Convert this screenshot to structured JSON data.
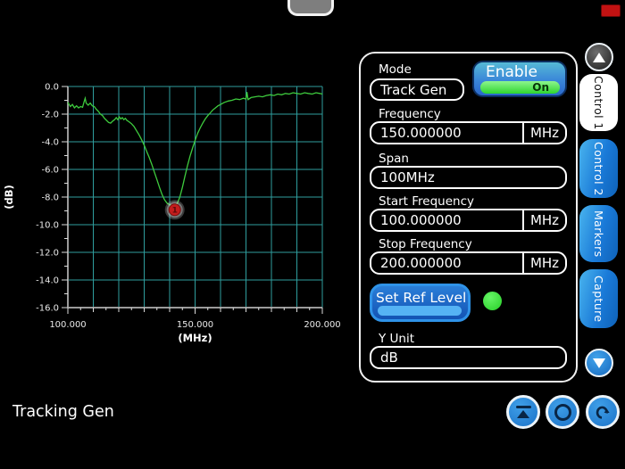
{
  "top": {
    "handle": "menu-pull-handle",
    "indicator": "red-indicator"
  },
  "status_text": "Tracking Gen",
  "panel": {
    "mode_label": "Mode",
    "mode_value": "Track Gen",
    "enable_label": "Enable",
    "enable_state": "On",
    "frequency_label": "Frequency",
    "frequency_value": "150.000000",
    "frequency_unit": "MHz",
    "span_label": "Span",
    "span_value": "100MHz",
    "start_label": "Start Frequency",
    "start_value": "100.000000",
    "start_unit": "MHz",
    "stop_label": "Stop Frequency",
    "stop_value": "200.000000",
    "stop_unit": "MHz",
    "set_ref_label": "Set Ref Level",
    "y_unit_label": "Y Unit",
    "y_unit_value": "dB"
  },
  "tabs": [
    {
      "label": "Control 1",
      "active": true
    },
    {
      "label": "Control 2",
      "active": false
    },
    {
      "label": "Markers",
      "active": false
    },
    {
      "label": "Capture",
      "active": false
    }
  ],
  "colors": {
    "grid": "#2f9e9e",
    "axis": "#9a9a9a",
    "trace": "#3ecb3e",
    "tick_text": "#e9e9e9",
    "marker_fill": "#c41d1d",
    "marker_stroke": "#7e0d0d",
    "tab_blue": "#1a7ad8",
    "led_green": "#35e635"
  },
  "chart_data": {
    "type": "line",
    "title": "",
    "xlabel": "(MHz)",
    "ylabel": "(dB)",
    "xlim": [
      100,
      200
    ],
    "ylim": [
      -16,
      0
    ],
    "x_grid_step": 10,
    "y_grid_step": 2,
    "grid": true,
    "legend": false,
    "x_tick_values": [
      100,
      150,
      200
    ],
    "x_tick_labels": [
      "100.000",
      "150.000",
      "200.000"
    ],
    "y_tick_values": [
      0,
      -2,
      -4,
      -6,
      -8,
      -10,
      -12,
      -14,
      -16
    ],
    "y_tick_labels": [
      "0.0",
      "-2.0",
      "-4.0",
      "-6.0",
      "-8.0",
      "-10.0",
      "-12.0",
      "-14.0",
      "-16.0"
    ],
    "marker": {
      "id": "1",
      "freq_mhz": 142,
      "level_db": -8.6
    },
    "series": [
      {
        "name": "trace",
        "points": [
          [
            100,
            -1.15
          ],
          [
            101,
            -1.45
          ],
          [
            101.8,
            -1.3
          ],
          [
            102.6,
            -1.55
          ],
          [
            103.4,
            -1.4
          ],
          [
            104.2,
            -1.55
          ],
          [
            105,
            -1.45
          ],
          [
            105.8,
            -1.5
          ],
          [
            106.4,
            -1.1
          ],
          [
            106.8,
            -0.85
          ],
          [
            107.2,
            -1.2
          ],
          [
            108,
            -1.35
          ],
          [
            108.8,
            -1.2
          ],
          [
            109.6,
            -1.4
          ],
          [
            110.4,
            -1.45
          ],
          [
            111.2,
            -1.65
          ],
          [
            112,
            -1.8
          ],
          [
            112.8,
            -2.0
          ],
          [
            113.6,
            -2.1
          ],
          [
            114.4,
            -2.3
          ],
          [
            115.2,
            -2.45
          ],
          [
            116,
            -2.6
          ],
          [
            116.8,
            -2.65
          ],
          [
            117.6,
            -2.5
          ],
          [
            118.4,
            -2.4
          ],
          [
            119,
            -2.25
          ],
          [
            119.6,
            -2.4
          ],
          [
            120.2,
            -2.2
          ],
          [
            120.8,
            -2.35
          ],
          [
            121.4,
            -2.25
          ],
          [
            122,
            -2.4
          ],
          [
            122.6,
            -2.3
          ],
          [
            123.2,
            -2.45
          ],
          [
            124,
            -2.55
          ],
          [
            125,
            -2.7
          ],
          [
            126,
            -2.9
          ],
          [
            127,
            -3.2
          ],
          [
            128,
            -3.5
          ],
          [
            129,
            -3.85
          ],
          [
            130,
            -4.25
          ],
          [
            131,
            -4.7
          ],
          [
            132,
            -5.15
          ],
          [
            133,
            -5.65
          ],
          [
            134,
            -6.2
          ],
          [
            135,
            -6.75
          ],
          [
            136,
            -7.3
          ],
          [
            137,
            -7.8
          ],
          [
            138,
            -8.2
          ],
          [
            139,
            -8.45
          ],
          [
            140,
            -8.55
          ],
          [
            141,
            -8.6
          ],
          [
            142,
            -8.62
          ],
          [
            143,
            -8.45
          ],
          [
            144,
            -8.0
          ],
          [
            145,
            -7.3
          ],
          [
            146,
            -6.5
          ],
          [
            147,
            -5.75
          ],
          [
            148,
            -5.05
          ],
          [
            149,
            -4.45
          ],
          [
            150,
            -3.9
          ],
          [
            151,
            -3.4
          ],
          [
            152,
            -3.0
          ],
          [
            153,
            -2.65
          ],
          [
            154,
            -2.35
          ],
          [
            155,
            -2.1
          ],
          [
            156,
            -1.9
          ],
          [
            157,
            -1.7
          ],
          [
            158,
            -1.55
          ],
          [
            159,
            -1.4
          ],
          [
            160,
            -1.3
          ],
          [
            161.5,
            -1.15
          ],
          [
            163,
            -1.05
          ],
          [
            164.5,
            -1.0
          ],
          [
            166,
            -0.9
          ],
          [
            167.5,
            -0.95
          ],
          [
            169,
            -0.85
          ],
          [
            170,
            -0.9
          ],
          [
            170.4,
            -0.4
          ],
          [
            170.8,
            -0.95
          ],
          [
            172,
            -0.8
          ],
          [
            173.5,
            -0.75
          ],
          [
            175,
            -0.7
          ],
          [
            176.5,
            -0.75
          ],
          [
            178,
            -0.65
          ],
          [
            179.5,
            -0.6
          ],
          [
            181,
            -0.65
          ],
          [
            182.5,
            -0.55
          ],
          [
            184,
            -0.6
          ],
          [
            185.5,
            -0.5
          ],
          [
            187,
            -0.55
          ],
          [
            188.5,
            -0.45
          ],
          [
            190,
            -0.5
          ],
          [
            191.5,
            -0.55
          ],
          [
            193,
            -0.45
          ],
          [
            194.5,
            -0.5
          ],
          [
            196,
            -0.55
          ],
          [
            197.5,
            -0.45
          ],
          [
            199,
            -0.5
          ],
          [
            200,
            -0.55
          ]
        ]
      }
    ]
  }
}
